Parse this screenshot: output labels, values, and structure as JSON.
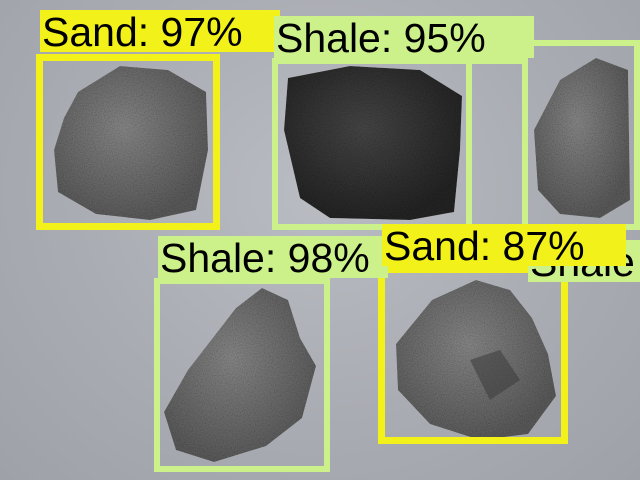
{
  "image": {
    "description_colors": {
      "background": "#aeb1b6",
      "sand_box": "#f2f21a",
      "shale_box": "#ccf08a"
    }
  },
  "detections": [
    {
      "class": "Sand",
      "confidence": "97%",
      "label": "Sand: 97%"
    },
    {
      "class": "Shale",
      "confidence": "95%",
      "label": "Shale: 95%"
    },
    {
      "class": "Shale",
      "confidence": "",
      "label": "Shale"
    },
    {
      "class": "Shale",
      "confidence": "98%",
      "label": "Shale: 98%"
    },
    {
      "class": "Sand",
      "confidence": "87%",
      "label": "Sand: 87%"
    }
  ]
}
